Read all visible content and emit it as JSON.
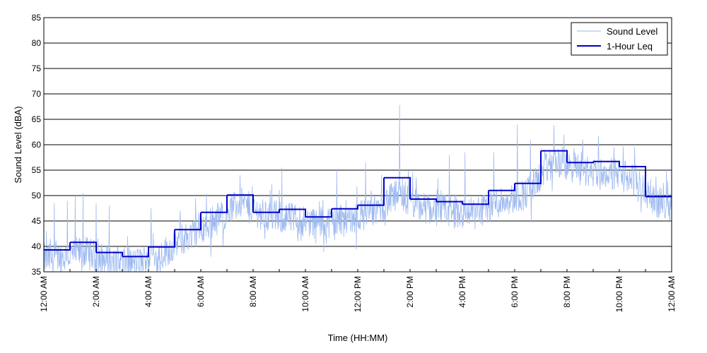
{
  "chart_data": {
    "type": "line",
    "title": "",
    "xlabel": "Time (HH:MM)",
    "ylabel": "Sound Level (dBA)",
    "xlim": [
      0,
      24
    ],
    "ylim": [
      35,
      85
    ],
    "y_ticks": [
      35,
      40,
      45,
      50,
      55,
      60,
      65,
      70,
      75,
      80,
      85
    ],
    "x_ticks": [
      0,
      2,
      4,
      6,
      8,
      10,
      12,
      14,
      16,
      18,
      20,
      22,
      24
    ],
    "x_tick_labels": [
      "12:00 AM",
      "2:00 AM",
      "4:00 AM",
      "6:00 AM",
      "8:00 AM",
      "10:00 AM",
      "12:00 PM",
      "2:00 PM",
      "4:00 PM",
      "6:00 PM",
      "8:00 PM",
      "10:00 PM",
      "12:00 AM"
    ],
    "grid": "horizontal",
    "legend_position": "top-right",
    "series": [
      {
        "name": "Sound Level",
        "style": "noisy",
        "color": "#9db9f0",
        "hourly_base": [
          37.5,
          39.0,
          37.0,
          36.5,
          38.5,
          42.0,
          45.0,
          48.5,
          46.0,
          45.5,
          44.5,
          45.5,
          46.5,
          50.0,
          47.5,
          47.0,
          46.5,
          49.0,
          50.5,
          57.0,
          55.0,
          54.5,
          53.5,
          48.5
        ],
        "spikes": [
          {
            "x": 0.4,
            "y": 48.5
          },
          {
            "x": 0.9,
            "y": 49.0
          },
          {
            "x": 1.2,
            "y": 50.0
          },
          {
            "x": 1.5,
            "y": 50.5
          },
          {
            "x": 2.0,
            "y": 48.5
          },
          {
            "x": 2.5,
            "y": 48.0
          },
          {
            "x": 3.2,
            "y": 42.0
          },
          {
            "x": 4.1,
            "y": 47.5
          },
          {
            "x": 5.8,
            "y": 49.5
          },
          {
            "x": 7.5,
            "y": 54.0
          },
          {
            "x": 9.1,
            "y": 55.5
          },
          {
            "x": 11.2,
            "y": 55.0
          },
          {
            "x": 12.3,
            "y": 56.5
          },
          {
            "x": 13.6,
            "y": 67.8
          },
          {
            "x": 15.5,
            "y": 58.0
          },
          {
            "x": 16.1,
            "y": 58.5
          },
          {
            "x": 17.2,
            "y": 58.5
          },
          {
            "x": 18.1,
            "y": 64.0
          },
          {
            "x": 18.6,
            "y": 61.0
          },
          {
            "x": 19.5,
            "y": 63.8
          },
          {
            "x": 20.6,
            "y": 61.0
          },
          {
            "x": 21.2,
            "y": 61.7
          },
          {
            "x": 21.8,
            "y": 59.5
          },
          {
            "x": 23.8,
            "y": 55.0
          }
        ]
      },
      {
        "name": "1-Hour Leq",
        "style": "step",
        "color": "#0000cc",
        "x": [
          0,
          1,
          2,
          3,
          4,
          5,
          6,
          7,
          8,
          9,
          10,
          11,
          12,
          13,
          14,
          15,
          16,
          17,
          18,
          19,
          20,
          21,
          22,
          23
        ],
        "values": [
          39.3,
          40.8,
          38.8,
          38.0,
          39.9,
          43.3,
          46.7,
          50.1,
          46.7,
          47.3,
          45.8,
          47.4,
          48.1,
          53.5,
          49.3,
          48.8,
          48.3,
          51.0,
          52.4,
          58.8,
          56.5,
          56.7,
          55.7,
          49.8
        ]
      }
    ]
  }
}
